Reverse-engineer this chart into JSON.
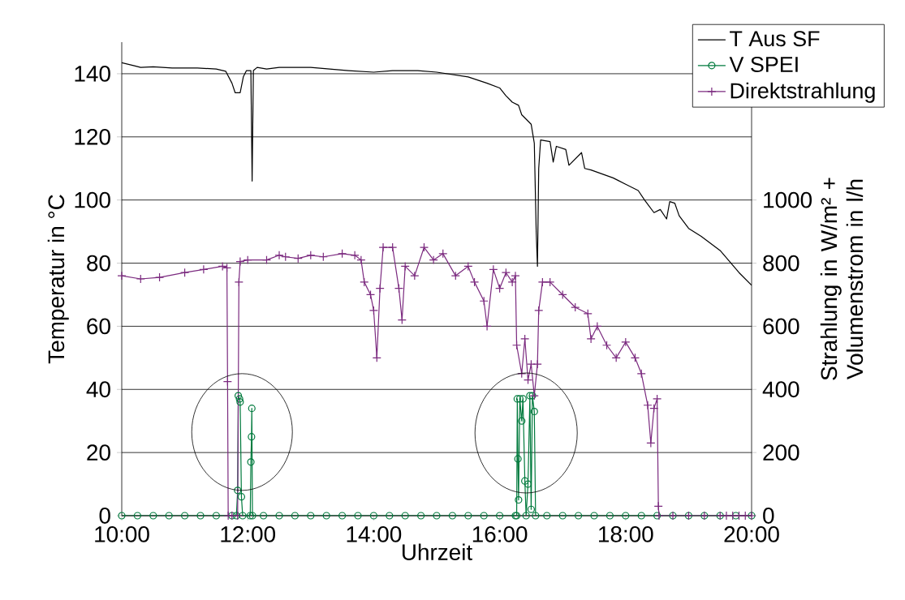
{
  "chart_data": {
    "type": "line",
    "xlabel": "Uhrzeit",
    "ylabel": "Temperatur in °C",
    "y2label": "Strahlung in W/m² + Volumenstrom in l/h",
    "xlim": [
      10,
      20
    ],
    "xticks": [
      {
        "value": 10,
        "label": "10:00"
      },
      {
        "value": 12,
        "label": "12:00"
      },
      {
        "value": 14,
        "label": "14:00"
      },
      {
        "value": 16,
        "label": "16:00"
      },
      {
        "value": 18,
        "label": "18:00"
      },
      {
        "value": 20,
        "label": "20:00"
      }
    ],
    "ylim": [
      0,
      150
    ],
    "yticks": [
      0,
      20,
      40,
      60,
      80,
      100,
      120,
      140
    ],
    "y2lim": [
      0,
      1500
    ],
    "y2ticks": [
      0,
      200,
      400,
      600,
      800,
      1000
    ],
    "grid": "y",
    "legend": "top right",
    "series": [
      {
        "name": "T Aus SF",
        "color": "#000000",
        "marker": "none",
        "line_style": "solid",
        "x": [
          10.0,
          10.2,
          10.3,
          10.5,
          10.8,
          11.2,
          11.5,
          11.65,
          11.75,
          11.8,
          11.88,
          11.93,
          11.98,
          12.05,
          12.07,
          12.09,
          12.15,
          12.3,
          12.5,
          13.0,
          13.3,
          13.6,
          14.0,
          14.3,
          14.7,
          15.0,
          15.5,
          15.8,
          16.0,
          16.1,
          16.2,
          16.3,
          16.35,
          16.5,
          16.55,
          16.58,
          16.6,
          16.62,
          16.65,
          16.8,
          16.85,
          16.9,
          17.05,
          17.1,
          17.3,
          17.35,
          17.45,
          17.8,
          18.0,
          18.2,
          18.3,
          18.45,
          18.55,
          18.65,
          18.7,
          18.78,
          18.85,
          19.0,
          19.2,
          19.5,
          19.8,
          20.0
        ],
        "values": [
          143.5,
          142.5,
          142,
          142.2,
          141.8,
          141.8,
          141.5,
          140.8,
          137,
          134,
          134,
          139,
          141,
          141,
          106,
          141,
          142,
          141.5,
          142,
          142,
          141.5,
          141,
          140.5,
          141,
          141,
          140.5,
          139,
          137,
          135.5,
          133,
          131,
          130,
          127,
          124,
          118,
          90,
          79,
          110,
          119,
          118.5,
          112,
          117,
          116,
          111,
          115,
          110,
          109.5,
          107,
          105,
          103,
          100,
          96,
          97,
          94,
          99.5,
          99,
          95,
          91,
          88.5,
          84,
          77,
          73
        ]
      },
      {
        "name": "V SPEI",
        "color": "#007a3d",
        "marker": "circle",
        "line_style": "solid",
        "axis": "y2",
        "x": [
          10.0,
          10.25,
          10.5,
          10.75,
          11.0,
          11.25,
          11.5,
          11.75,
          11.82,
          11.84,
          11.85,
          11.87,
          11.88,
          11.9,
          11.92,
          12.04,
          12.05,
          12.06,
          12.065,
          12.075,
          12.25,
          12.5,
          12.75,
          13.0,
          13.25,
          13.5,
          13.75,
          14.0,
          14.25,
          14.5,
          14.75,
          15.0,
          15.25,
          15.5,
          15.75,
          16.0,
          16.25,
          16.27,
          16.28,
          16.29,
          16.3,
          16.32,
          16.35,
          16.37,
          16.4,
          16.42,
          16.45,
          16.48,
          16.5,
          16.52,
          16.55,
          16.57,
          16.75,
          17.0,
          17.25,
          17.5,
          17.75,
          18.0,
          18.25,
          18.5,
          18.75,
          19.0,
          19.25,
          19.5,
          19.75,
          20.0
        ],
        "values": [
          0,
          0,
          0,
          0,
          0,
          0,
          0,
          0,
          0,
          80,
          380,
          370,
          360,
          60,
          0,
          0,
          170,
          250,
          340,
          0,
          0,
          0,
          0,
          0,
          0,
          0,
          0,
          0,
          0,
          0,
          0,
          0,
          0,
          0,
          0,
          0,
          0,
          0,
          370,
          180,
          50,
          370,
          300,
          370,
          110,
          0,
          100,
          380,
          20,
          380,
          330,
          0,
          0,
          0,
          0,
          0,
          0,
          0,
          0,
          0,
          0,
          0,
          0,
          0,
          0,
          0
        ]
      },
      {
        "name": "Direktstrahlung",
        "color": "#7b2a7f",
        "marker": "cross",
        "line_style": "solid",
        "axis": "y2",
        "x": [
          10.0,
          10.3,
          10.6,
          11.0,
          11.3,
          11.6,
          11.67,
          11.68,
          11.69,
          11.75,
          11.84,
          11.86,
          11.88,
          12.0,
          12.3,
          12.5,
          12.6,
          12.8,
          13.0,
          13.2,
          13.5,
          13.7,
          13.8,
          13.85,
          13.95,
          14.0,
          14.05,
          14.1,
          14.15,
          14.3,
          14.4,
          14.45,
          14.5,
          14.65,
          14.8,
          14.95,
          15.1,
          15.3,
          15.5,
          15.6,
          15.75,
          15.8,
          15.9,
          16.0,
          16.1,
          16.2,
          16.25,
          16.27,
          16.35,
          16.4,
          16.45,
          16.5,
          16.55,
          16.6,
          16.62,
          16.68,
          16.8,
          17.0,
          17.2,
          17.4,
          17.45,
          17.55,
          17.7,
          17.85,
          18.0,
          18.15,
          18.25,
          18.35,
          18.4,
          18.45,
          18.5,
          18.52,
          18.53,
          18.75,
          19.0,
          19.25,
          19.5,
          19.6,
          19.7,
          19.8,
          19.9,
          20.0
        ],
        "values": [
          760,
          750,
          755,
          770,
          780,
          790,
          785,
          425,
          0,
          0,
          0,
          740,
          805,
          810,
          810,
          825,
          820,
          815,
          825,
          820,
          830,
          825,
          810,
          740,
          700,
          650,
          500,
          720,
          850,
          850,
          720,
          620,
          790,
          760,
          850,
          810,
          830,
          760,
          790,
          740,
          680,
          600,
          780,
          720,
          770,
          740,
          760,
          540,
          450,
          560,
          430,
          480,
          380,
          480,
          650,
          740,
          740,
          700,
          660,
          640,
          560,
          600,
          540,
          500,
          550,
          500,
          450,
          350,
          230,
          340,
          370,
          30,
          0,
          0,
          0,
          0,
          0,
          0,
          0,
          0,
          0,
          0
        ]
      }
    ]
  }
}
